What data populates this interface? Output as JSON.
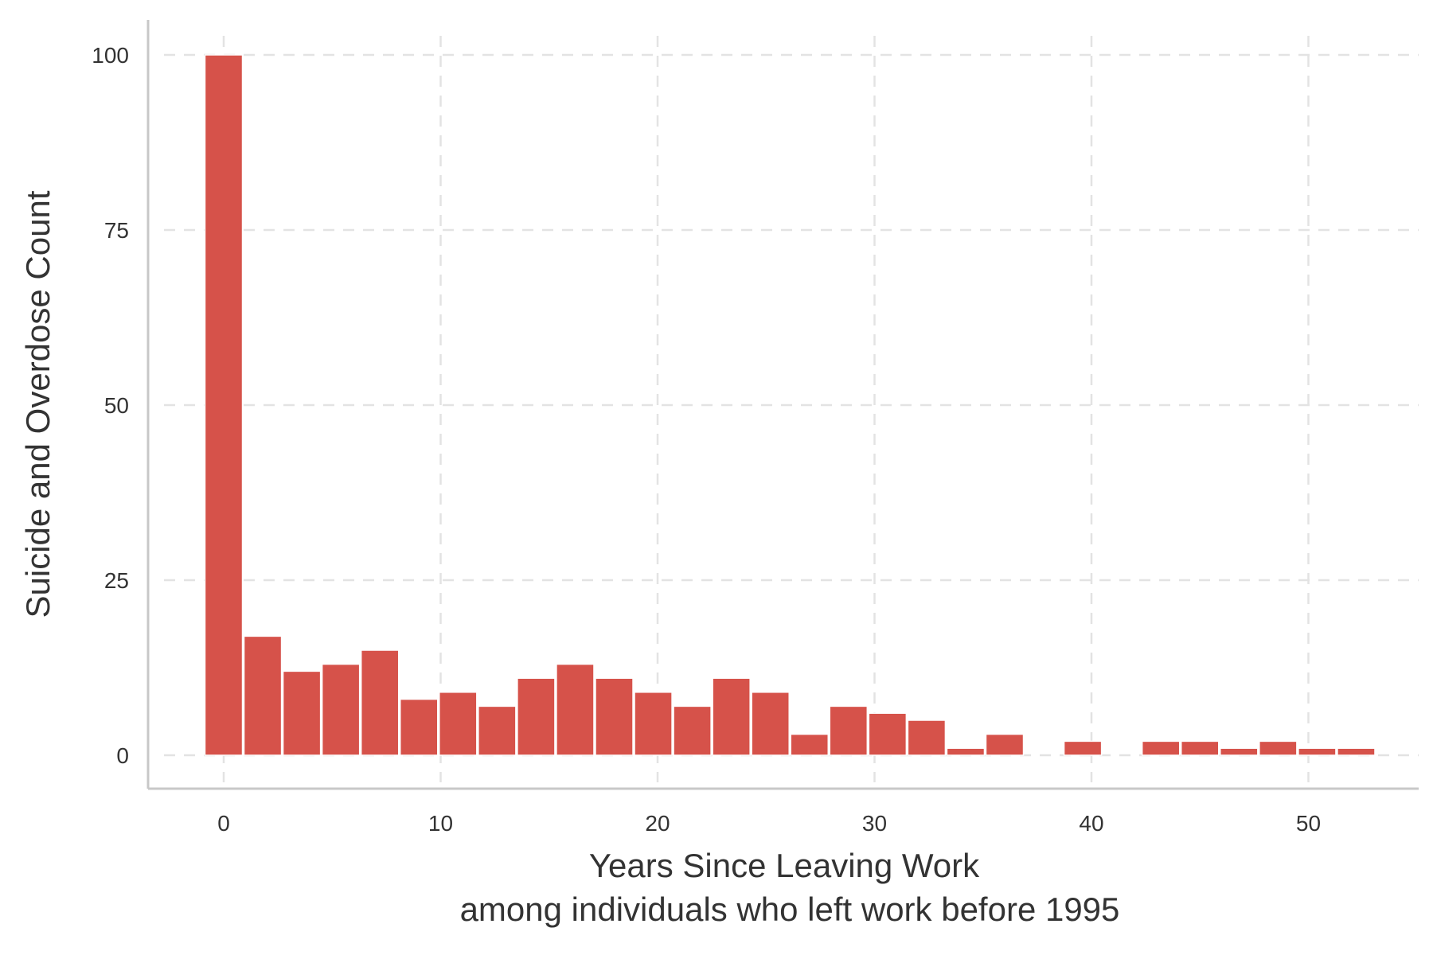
{
  "chart_data": {
    "type": "bar",
    "subtype": "histogram",
    "x": [
      0,
      1.8,
      3.6,
      5.4,
      7.2,
      9.0,
      10.8,
      12.6,
      14.4,
      16.2,
      18.0,
      19.8,
      21.6,
      23.4,
      25.2,
      27.0,
      28.8,
      30.6,
      32.4,
      34.2,
      36.0,
      37.8,
      39.6,
      41.4,
      43.2,
      45.0,
      46.8,
      48.6,
      50.4,
      52.2
    ],
    "values": [
      100,
      17,
      12,
      13,
      15,
      8,
      9,
      7,
      11,
      13,
      11,
      9,
      7,
      11,
      9,
      3,
      7,
      6,
      5,
      1,
      3,
      0,
      2,
      0,
      2,
      2,
      1,
      2,
      1,
      1
    ],
    "bar_color": "#d6524a",
    "xlabel": "Years Since Leaving Work",
    "xlabel_line2": "among individuals who left work before 1995",
    "ylabel": "Suicide and Overdose Count",
    "xlim": [
      -3.5,
      55
    ],
    "ylim": [
      -9.5,
      105
    ],
    "x_ticks": [
      0,
      10,
      20,
      30,
      40,
      50
    ],
    "y_ticks": [
      0,
      25,
      50,
      75,
      100
    ],
    "grid": true,
    "colors": {
      "grid": "#e3e3e3",
      "axis": "#c8c8c8",
      "text": "#333333"
    }
  }
}
